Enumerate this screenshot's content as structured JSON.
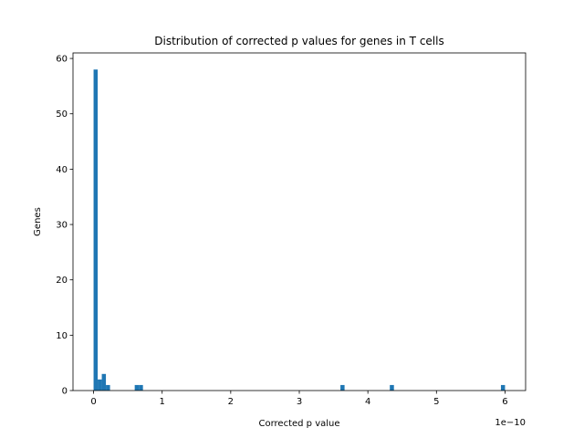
{
  "chart_data": {
    "type": "bar",
    "title": "Distribution of corrected p values for genes in T cells",
    "xlabel": "Corrected p value",
    "ylabel": "Genes",
    "x_offset_text": "1e−10",
    "x_scale_factor": 1e-10,
    "xlim": [
      -0.3,
      6.3
    ],
    "ylim": [
      0,
      61
    ],
    "xticks": [
      0,
      1,
      2,
      3,
      4,
      5,
      6
    ],
    "yticks": [
      0,
      10,
      20,
      30,
      40,
      50,
      60
    ],
    "grid": false,
    "bin_width": 0.06,
    "bars": [
      {
        "x": 0.0,
        "count": 58
      },
      {
        "x": 0.06,
        "count": 2
      },
      {
        "x": 0.12,
        "count": 3
      },
      {
        "x": 0.18,
        "count": 1
      },
      {
        "x": 0.6,
        "count": 1
      },
      {
        "x": 0.66,
        "count": 1
      },
      {
        "x": 3.6,
        "count": 1
      },
      {
        "x": 4.32,
        "count": 1
      },
      {
        "x": 5.94,
        "count": 1
      }
    ],
    "colors": {
      "bar": "#1f77b4"
    }
  }
}
